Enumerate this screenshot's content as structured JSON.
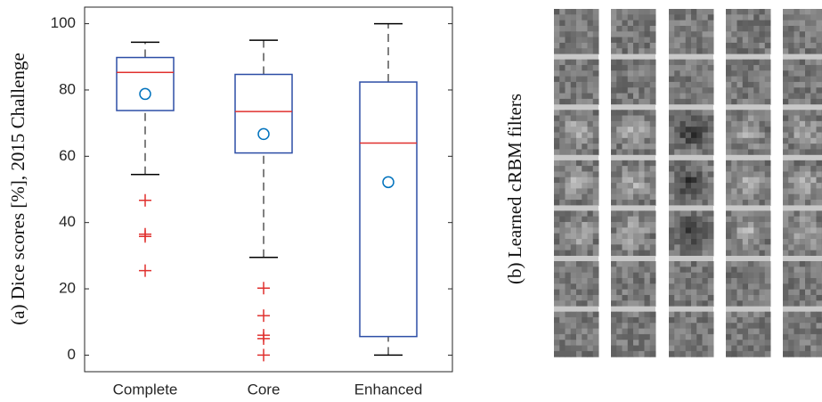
{
  "chart_data": {
    "type": "box",
    "y_label": "(a) Dice scores [%], 2015 Challenge",
    "categories": [
      "Complete",
      "Core",
      "Enhanced"
    ],
    "boxes": [
      {
        "whisker_low": 54.5,
        "q1": 73.8,
        "median": 85.3,
        "q3": 89.8,
        "whisker_high": 94.4,
        "mean": 78.8,
        "outliers": [
          46.7,
          36.5,
          35.8,
          25.5
        ]
      },
      {
        "whisker_low": 29.5,
        "q1": 61,
        "median": 73.5,
        "q3": 84.7,
        "whisker_high": 95,
        "mean": 66.7,
        "outliers": [
          20.2,
          11.9,
          6,
          5,
          0
        ]
      },
      {
        "whisker_low": 0,
        "q1": 5.6,
        "median": 64,
        "q3": 82.4,
        "whisker_high": 100,
        "mean": 52.2,
        "outliers": []
      }
    ],
    "box_color": "#2d4ea6",
    "median_color": "#e0302e",
    "mean_color": "#0072bd",
    "outlier_color": "#e0302e",
    "ylim": [
      -5,
      105
    ],
    "yticks": [
      0,
      20,
      40,
      60,
      80,
      100
    ]
  },
  "panel_b": {
    "label": "(b) Learned cRBM filters"
  }
}
